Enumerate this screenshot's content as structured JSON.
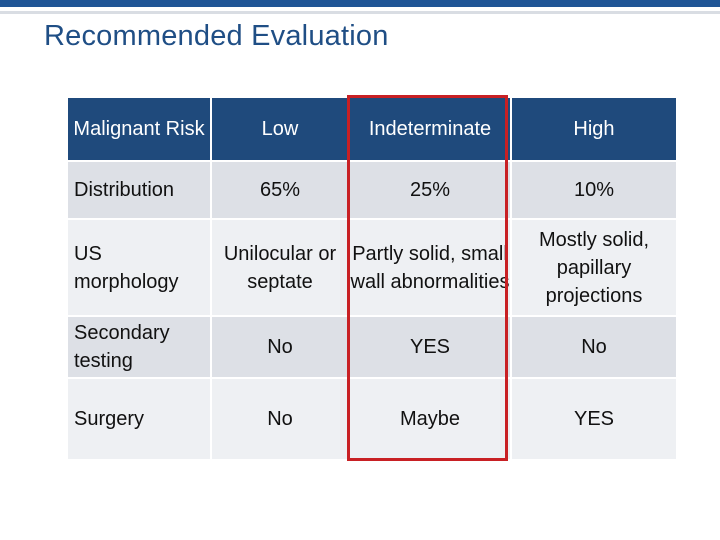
{
  "slide": {
    "title": "Recommended Evaluation"
  },
  "table": {
    "header": {
      "row_label": "Malignant Risk",
      "columns": [
        "Low",
        "Indeterminate",
        "High"
      ]
    },
    "rows": [
      {
        "label": "Distribution",
        "cells": [
          "65%",
          "25%",
          "10%"
        ]
      },
      {
        "label": "US morphology",
        "cells": [
          "Unilocular or septate",
          "Partly solid, small wall abnormalities",
          "Mostly solid, papillary projections"
        ]
      },
      {
        "label": "Secondary testing",
        "cells": [
          "No",
          "YES",
          "No"
        ]
      },
      {
        "label": "Surgery",
        "cells": [
          "No",
          "Maybe",
          "YES"
        ]
      }
    ],
    "highlighted_column": "Indeterminate"
  },
  "colors": {
    "top_bar": "#1f5596",
    "title_text": "#1f4e85",
    "header_fill": "#1f4a7c",
    "highlight_box": "#c82024",
    "emphasis_text": "#cc1a1a"
  }
}
